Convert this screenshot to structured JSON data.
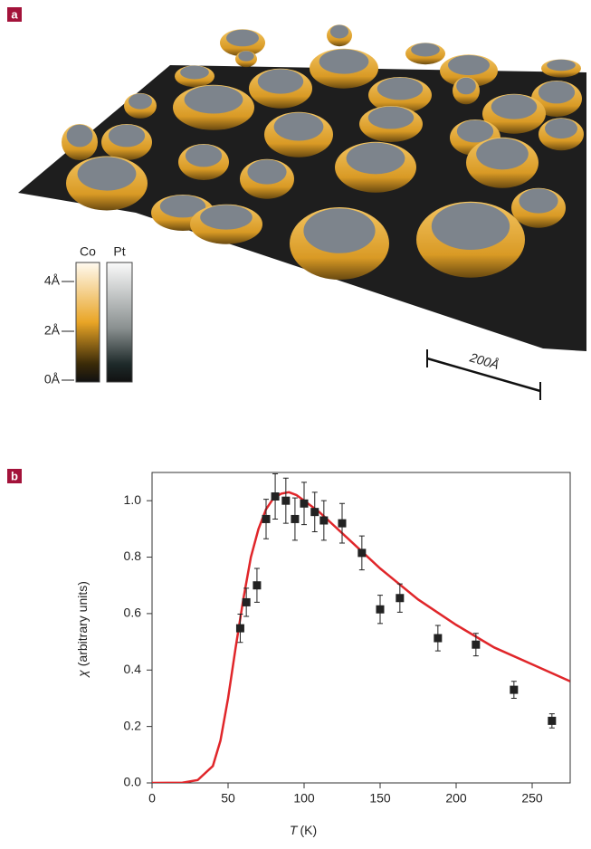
{
  "panel_a": {
    "label": "a",
    "colorbar_labels": [
      "Co",
      "Pt"
    ],
    "colorbar_ticks": [
      "4Å",
      "2Å",
      "0Å"
    ],
    "scale_bar": "200Å"
  },
  "chart_data": {
    "type": "scatter",
    "panel_label": "b",
    "x_label_symbol": "T",
    "x_label_unit": "(K)",
    "y_label_symbol": "χ",
    "y_label_unit": "(arbitrary units)",
    "xlim": [
      0,
      275
    ],
    "ylim": [
      0,
      1.1
    ],
    "xticks": [
      0,
      50,
      100,
      150,
      200,
      250
    ],
    "yticks": [
      {
        "value": 0,
        "label": "0.0"
      },
      0.2,
      0.4,
      0.6,
      0.8,
      {
        "value": 1,
        "label": "1.0"
      }
    ],
    "series": [
      {
        "type": "scatter",
        "color": "#222222",
        "x": [
          58,
          62,
          69,
          75,
          81,
          88,
          94,
          100,
          107,
          113,
          125,
          138,
          150,
          163,
          188,
          213,
          238,
          263
        ],
        "values": [
          0.548,
          0.64,
          0.7,
          0.935,
          1.015,
          1.0,
          0.935,
          0.99,
          0.96,
          0.93,
          0.92,
          0.815,
          0.615,
          0.655,
          0.513,
          0.49,
          0.33,
          0.22
        ],
        "errors": [
          0.05,
          0.05,
          0.06,
          0.07,
          0.08,
          0.08,
          0.075,
          0.075,
          0.07,
          0.07,
          0.07,
          0.06,
          0.05,
          0.05,
          0.045,
          0.04,
          0.03,
          0.025
        ]
      },
      {
        "type": "line",
        "color": "#e0262a",
        "x": [
          0,
          20,
          30,
          40,
          45,
          50,
          55,
          60,
          65,
          70,
          75,
          80,
          85,
          90,
          95,
          100,
          110,
          120,
          130,
          140,
          150,
          175,
          200,
          225,
          250,
          275
        ],
        "values": [
          0,
          0.001,
          0.01,
          0.06,
          0.15,
          0.3,
          0.48,
          0.65,
          0.8,
          0.9,
          0.97,
          1.01,
          1.025,
          1.03,
          1.02,
          1.0,
          0.96,
          0.91,
          0.86,
          0.81,
          0.76,
          0.65,
          0.56,
          0.48,
          0.42,
          0.36
        ]
      }
    ]
  }
}
